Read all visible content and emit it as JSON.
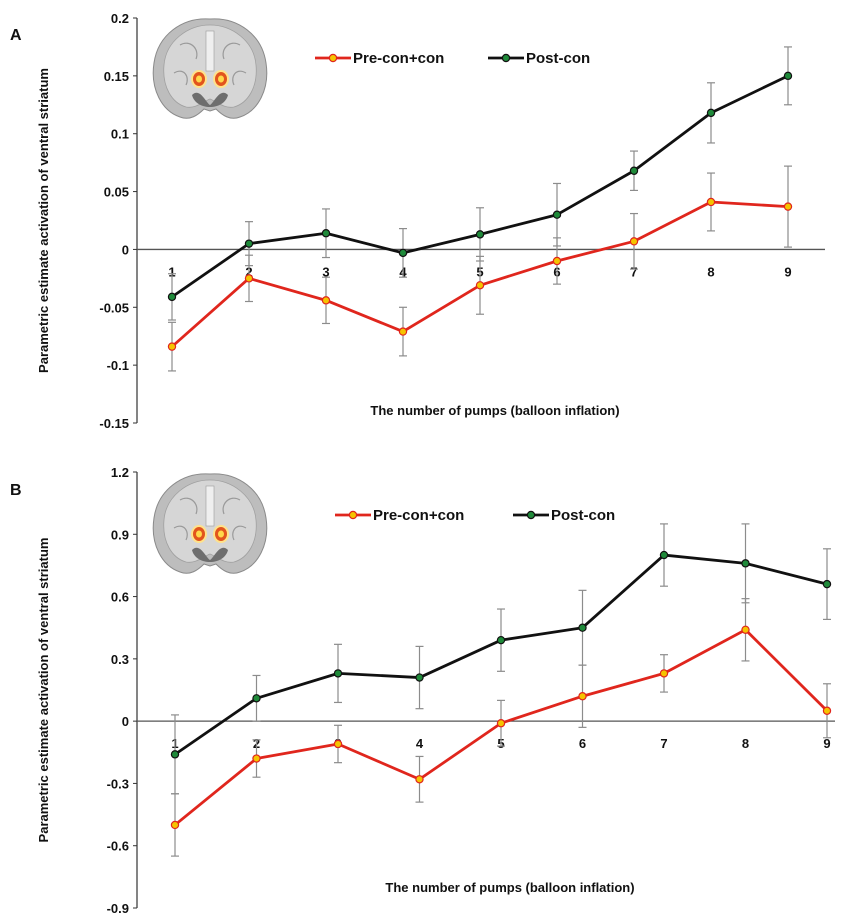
{
  "chart_data": [
    {
      "panel": "A",
      "type": "line",
      "xlabel": "The number of pumps (balloon inflation)",
      "ylabel": "Parametric estimate activation of ventral striatum",
      "ylim": [
        -0.15,
        0.2
      ],
      "yticks": [
        "0.2",
        "0.15",
        "0.1",
        "0.05",
        "0",
        "-0.05",
        "-0.1",
        "-0.15"
      ],
      "categories": [
        "1",
        "2",
        "3",
        "4",
        "5",
        "6",
        "7",
        "8",
        "9"
      ],
      "legend": "top",
      "series": [
        {
          "name": "Pre-con+con",
          "color": "#e0261d",
          "marker": "#f5c400",
          "values": [
            -0.084,
            -0.025,
            -0.044,
            -0.071,
            -0.031,
            -0.01,
            0.007,
            0.041,
            0.037
          ],
          "errors": [
            0.021,
            0.02,
            0.02,
            0.021,
            0.025,
            0.02,
            0.024,
            0.025,
            0.035
          ]
        },
        {
          "name": "Post-con",
          "color": "#111111",
          "marker": "#1f8a3a",
          "values": [
            -0.041,
            0.005,
            0.014,
            -0.003,
            0.013,
            0.03,
            0.068,
            0.118,
            0.15
          ],
          "errors": [
            0.02,
            0.019,
            0.021,
            0.021,
            0.023,
            0.027,
            0.017,
            0.026,
            0.025
          ]
        }
      ]
    },
    {
      "panel": "B",
      "type": "line",
      "xlabel": "The number of pumps (balloon inflation)",
      "ylabel": "Parametric estimate activation of ventral striatum",
      "ylim": [
        -0.9,
        1.2
      ],
      "yticks": [
        "1.2",
        "0.9",
        "0.6",
        "0.3",
        "0",
        "-0.3",
        "-0.6",
        "-0.9"
      ],
      "categories": [
        "1",
        "2",
        "3",
        "4",
        "5",
        "6",
        "7",
        "8",
        "9"
      ],
      "legend": "top",
      "series": [
        {
          "name": "Pre-con+con",
          "color": "#e0261d",
          "marker": "#f5c400",
          "values": [
            -0.5,
            -0.18,
            -0.11,
            -0.28,
            -0.01,
            0.12,
            0.23,
            0.44,
            0.05
          ],
          "errors": [
            0.15,
            0.09,
            0.09,
            0.11,
            0.11,
            0.15,
            0.09,
            0.15,
            0.13
          ]
        },
        {
          "name": "Post-con",
          "color": "#111111",
          "marker": "#1f8a3a",
          "values": [
            -0.16,
            0.11,
            0.23,
            0.21,
            0.39,
            0.45,
            0.8,
            0.76,
            0.66
          ],
          "errors": [
            0.19,
            0.11,
            0.14,
            0.15,
            0.15,
            0.18,
            0.15,
            0.19,
            0.17
          ]
        }
      ]
    }
  ]
}
